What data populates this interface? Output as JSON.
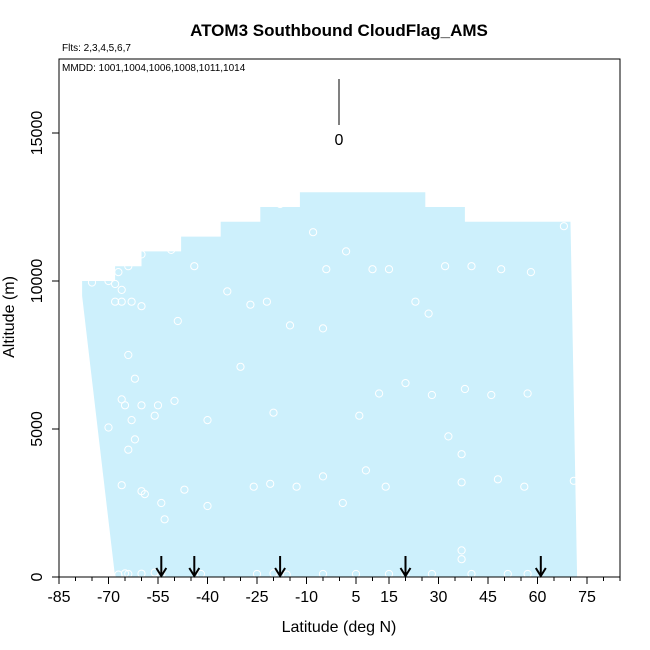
{
  "chart_data": {
    "type": "scatter",
    "title": "ATOM3 Southbound CloudFlag_AMS",
    "subtitle": "Flts: 2,3,4,5,6,7",
    "annotation": "MMDD: 1001,1004,1006,1008,1011,1014",
    "legend_marker_label": "0",
    "xlabel": "Latitude (deg N)",
    "ylabel": "Altitude (m)",
    "xlim": [
      -85,
      85
    ],
    "ylim": [
      0,
      17500
    ],
    "x_tick_labels": [
      "-85",
      "-70",
      "-55",
      "-40",
      "-25",
      "-10",
      "5",
      "15",
      "30",
      "45",
      "60",
      "75"
    ],
    "x_tick_values": [
      -85,
      -70,
      -55,
      -40,
      -25,
      -10,
      5,
      15,
      30,
      45,
      60,
      75
    ],
    "x_minor_tick_step": 5,
    "y_tick_values": [
      0,
      5000,
      10000,
      15000
    ],
    "y_tick_labels": [
      "0",
      "5000",
      "10000",
      "15000"
    ],
    "grid": false,
    "flight_coverage_color": "#cdf0fc",
    "marker_color": "#ffffff",
    "arrow_color": "#000000",
    "flight_coverage": {
      "description_free": true,
      "left_edge": [
        [
          -78,
          9500
        ],
        [
          -68,
          0
        ]
      ],
      "top_steps": [
        [
          -78,
          10000
        ],
        [
          -68,
          10500
        ],
        [
          -60,
          11000
        ],
        [
          -48,
          11500
        ],
        [
          -36,
          12000
        ],
        [
          -24,
          12500
        ],
        [
          -12,
          13000
        ],
        [
          26,
          12500
        ],
        [
          38,
          12000
        ],
        [
          70,
          12000
        ]
      ],
      "right_edge": [
        [
          70,
          12000
        ],
        [
          72,
          0
        ]
      ]
    },
    "arrows_latitude": [
      -54,
      -44,
      -18,
      20,
      61
    ],
    "points": [
      [
        -75,
        9950
      ],
      [
        -70,
        10000
      ],
      [
        -68,
        9900
      ],
      [
        -67,
        10300
      ],
      [
        -66,
        9700
      ],
      [
        -68,
        9300
      ],
      [
        -66,
        9300
      ],
      [
        -64,
        10500
      ],
      [
        -63,
        9300
      ],
      [
        -60,
        9150
      ],
      [
        -60,
        10900
      ],
      [
        -51,
        11050
      ],
      [
        -44,
        10500
      ],
      [
        -34,
        9650
      ],
      [
        -27,
        9200
      ],
      [
        -22,
        9300
      ],
      [
        -18,
        12600
      ],
      [
        -8,
        11650
      ],
      [
        -4,
        10400
      ],
      [
        2,
        11000
      ],
      [
        10,
        10400
      ],
      [
        15,
        10400
      ],
      [
        23,
        9300
      ],
      [
        27,
        8900
      ],
      [
        32,
        10500
      ],
      [
        40,
        10500
      ],
      [
        49,
        10400
      ],
      [
        58,
        10300
      ],
      [
        68,
        11850
      ],
      [
        -75,
        5000
      ],
      [
        -70,
        5050
      ],
      [
        -66,
        6000
      ],
      [
        -65,
        5800
      ],
      [
        -64,
        7500
      ],
      [
        -62,
        6700
      ],
      [
        -63,
        5300
      ],
      [
        -62,
        4650
      ],
      [
        -64,
        4300
      ],
      [
        -60,
        5800
      ],
      [
        -56,
        5450
      ],
      [
        -55,
        5800
      ],
      [
        -50,
        5950
      ],
      [
        -49,
        8650
      ],
      [
        -40,
        5300
      ],
      [
        -30,
        7100
      ],
      [
        -20,
        5550
      ],
      [
        -15,
        8500
      ],
      [
        -5,
        8400
      ],
      [
        6,
        5450
      ],
      [
        12,
        6200
      ],
      [
        20,
        6550
      ],
      [
        28,
        6150
      ],
      [
        33,
        4750
      ],
      [
        37,
        4150
      ],
      [
        38,
        6350
      ],
      [
        46,
        6150
      ],
      [
        57,
        6200
      ],
      [
        -66,
        3100
      ],
      [
        -60,
        2900
      ],
      [
        -59,
        2800
      ],
      [
        -54,
        2500
      ],
      [
        -53,
        1950
      ],
      [
        -47,
        2950
      ],
      [
        -40,
        2400
      ],
      [
        -26,
        3050
      ],
      [
        -21,
        3150
      ],
      [
        -13,
        3050
      ],
      [
        -5,
        3400
      ],
      [
        1,
        2500
      ],
      [
        8,
        3600
      ],
      [
        14,
        3050
      ],
      [
        37,
        3200
      ],
      [
        48,
        3300
      ],
      [
        56,
        3050
      ],
      [
        71,
        3250
      ],
      [
        -70,
        100
      ],
      [
        -67,
        80
      ],
      [
        -65,
        120
      ],
      [
        -64,
        100
      ],
      [
        -60,
        110
      ],
      [
        -56,
        150
      ],
      [
        -54,
        80
      ],
      [
        -42,
        100
      ],
      [
        -25,
        100
      ],
      [
        -20,
        120
      ],
      [
        -16,
        80
      ],
      [
        -5,
        100
      ],
      [
        5,
        100
      ],
      [
        15,
        100
      ],
      [
        20,
        90
      ],
      [
        28,
        100
      ],
      [
        37,
        600
      ],
      [
        37,
        900
      ],
      [
        40,
        100
      ],
      [
        51,
        100
      ],
      [
        57,
        100
      ]
    ]
  }
}
